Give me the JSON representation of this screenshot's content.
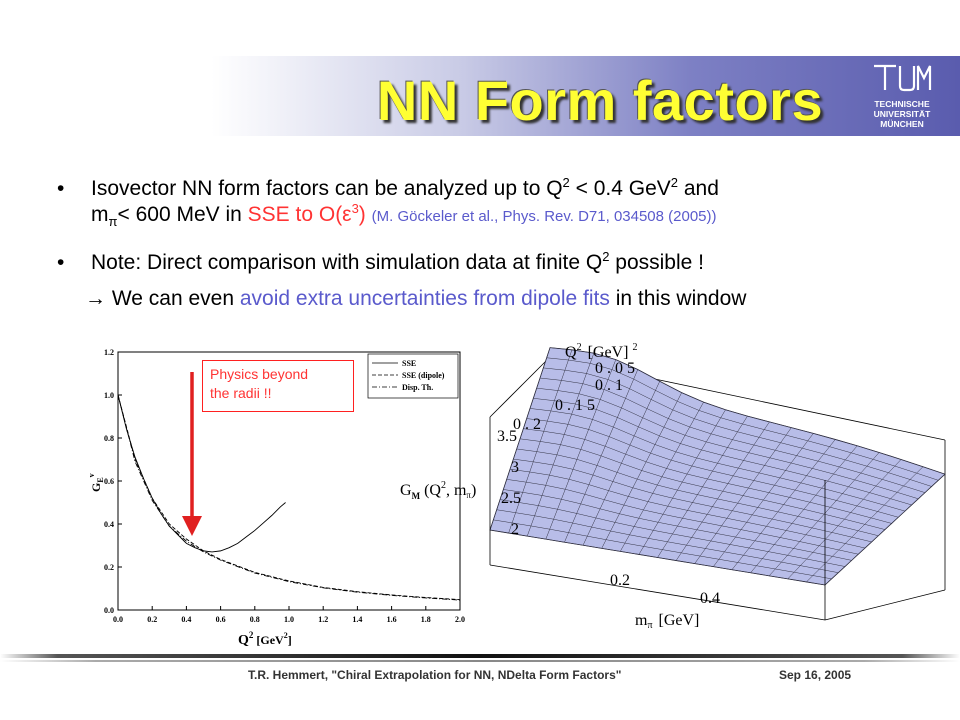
{
  "slide": {
    "title": "NN Form factors",
    "logo_text": [
      "TECHNISCHE",
      "UNIVERSITÄT",
      "MÜNCHEN"
    ],
    "bullets": {
      "b1": {
        "t1": "Isovector NN form factors can be analyzed up to Q",
        "sup1": "2",
        "t2": " < 0.4 GeV",
        "sup2": "2",
        "t3": " and",
        "t4": "m",
        "sub1": "π",
        "t5": "< 600 MeV in ",
        "red_pre": "SSE to O(ε",
        "red_sup": "3",
        "red_post": ")",
        "cite": "(M. Göckeler et al., Phys. Rev. D71, 034508 (2005))"
      },
      "b2": {
        "t1": "Note: Direct comparison with simulation data at finite Q",
        "sup": "2",
        "t2": " possible !"
      },
      "b3": {
        "arrow": "→",
        "t1": " We can even ",
        "blue": "avoid extra uncertainties from dipole fits",
        "t2": " in this window"
      },
      "dot": "•"
    },
    "annotation": {
      "line1": "Physics beyond",
      "line2": "the radii !!"
    },
    "footer": {
      "left": "T.R. Hemmert, \"Chiral Extrapolation for NN, NDelta Form Factors\"",
      "date": "Sep 16, 2005"
    },
    "colors": {
      "title": "#ffff33",
      "highlight_red": "#ff3333",
      "highlight_blue": "#5a5acc",
      "surface": "#b8bde8"
    }
  },
  "chart_data": [
    {
      "type": "line",
      "xlabel_main": "Q",
      "xlabel_sup": "2",
      "xlabel_unit": "[GeV",
      "xlabel_unit_sup": "2",
      "xlabel_close": "]",
      "ylabel": "G",
      "ylabel_sub": "E",
      "ylabel_sup": "v",
      "xlim": [
        0.0,
        2.0
      ],
      "ylim": [
        0.0,
        1.2
      ],
      "xticks": [
        "0.0",
        "0.2",
        "0.4",
        "0.6",
        "0.8",
        "1.0",
        "1.2",
        "1.4",
        "1.6",
        "1.8",
        "2.0"
      ],
      "yticks": [
        "0.0",
        "0.2",
        "0.4",
        "0.6",
        "0.8",
        "1.0",
        "1.2"
      ],
      "legend": [
        "SSE",
        "SSE (dipole)",
        "Disp. Th."
      ],
      "legend_position": "top-right",
      "series": [
        {
          "name": "SSE",
          "x": [
            0,
            0.05,
            0.1,
            0.15,
            0.2,
            0.25,
            0.3,
            0.35,
            0.4,
            0.45,
            0.5,
            0.55,
            0.6,
            0.65,
            0.7,
            0.75,
            0.8,
            0.85,
            0.9,
            0.95,
            0.98
          ],
          "values": [
            1.0,
            0.84,
            0.71,
            0.61,
            0.52,
            0.45,
            0.39,
            0.35,
            0.31,
            0.29,
            0.275,
            0.27,
            0.275,
            0.29,
            0.31,
            0.34,
            0.37,
            0.405,
            0.44,
            0.48,
            0.5
          ]
        },
        {
          "name": "SSE (dipole)",
          "x": [
            0,
            0.1,
            0.2,
            0.3,
            0.4,
            0.5,
            0.6,
            0.8,
            1.0,
            1.2,
            1.4,
            1.6,
            1.8,
            2.0
          ],
          "values": [
            1.0,
            0.7,
            0.52,
            0.4,
            0.33,
            0.275,
            0.235,
            0.175,
            0.135,
            0.105,
            0.085,
            0.07,
            0.058,
            0.048
          ]
        },
        {
          "name": "Disp. Th.",
          "x": [
            0,
            0.1,
            0.2,
            0.3,
            0.4,
            0.5,
            0.6,
            0.8,
            1.0,
            1.2,
            1.4,
            1.6,
            1.8,
            2.0
          ],
          "values": [
            1.0,
            0.69,
            0.51,
            0.39,
            0.32,
            0.27,
            0.232,
            0.172,
            0.132,
            0.103,
            0.083,
            0.068,
            0.056,
            0.046
          ]
        }
      ]
    },
    {
      "type": "surface3d",
      "z_label_main": "G",
      "z_label_sub": "M",
      "z_label_args": "(Q",
      "z_label_args_sup": "2",
      "z_label_args_rest": ", m",
      "z_label_args_sub": "π",
      "z_label_close": ")",
      "q_label": "Q",
      "q_label_sup": "2",
      "q_label_unit": "[GeV]",
      "q_label_unit_sup": "2",
      "m_label": "m",
      "m_label_sub": "π",
      "m_label_unit": "[GeV]",
      "q_ticks": [
        "0.05",
        "0.1",
        "0.15",
        "0.2"
      ],
      "z_ticks": [
        "2",
        "2.5",
        "3",
        "3.5"
      ],
      "m_ticks": [
        "0.2",
        "0.4"
      ]
    }
  ]
}
